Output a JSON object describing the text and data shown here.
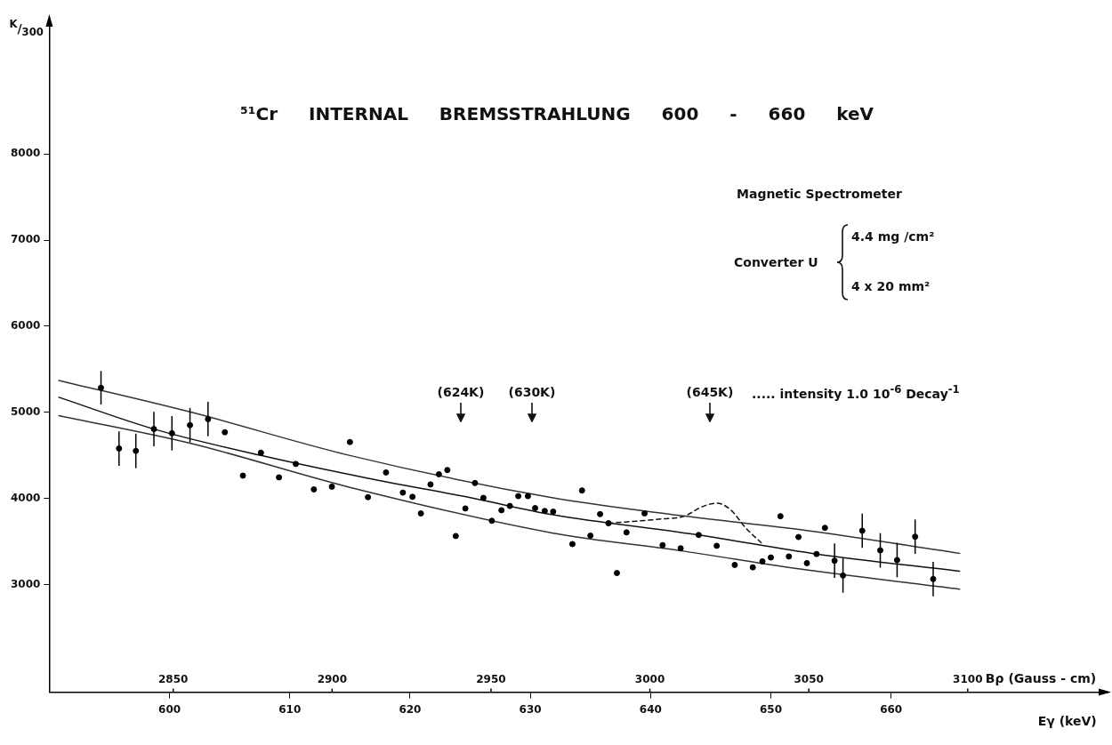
{
  "chart_data": {
    "type": "scatter",
    "title": "⁵¹Cr INTERNAL BREMSSTRAHLUNG 600 - 660 keV",
    "xlabel": "Eγ (keV)",
    "x2label": "Bρ (Gauss - cm)",
    "ylabel": "$^{K}$/$_{300}$",
    "xlim": [
      590,
      678
    ],
    "xticks": [
      600,
      610,
      620,
      630,
      640,
      650,
      660
    ],
    "x2lim": [
      2811,
      3144
    ],
    "x2ticks": [
      2850,
      2900,
      2950,
      3000,
      3050,
      3100
    ],
    "ylim": [
      1750,
      9500
    ],
    "yticks": [
      3000,
      4000,
      5000,
      6000,
      7000,
      8000
    ],
    "grid": false,
    "marker": "circle",
    "series": [
      {
        "color": "#000000",
        "x": [
          594.3,
          595.8,
          597.2,
          598.7,
          600.2,
          601.7,
          603.2,
          604.6,
          606.1,
          607.6,
          609.1,
          610.5,
          612.0,
          613.5,
          615.0,
          616.5,
          618.0,
          619.4,
          620.2,
          620.9,
          621.7,
          622.4,
          623.1,
          623.8,
          624.6,
          625.4,
          626.1,
          626.8,
          627.6,
          628.3,
          629.0,
          629.8,
          630.4,
          631.2,
          631.9,
          633.5,
          634.3,
          635.0,
          635.8,
          636.5,
          637.2,
          638.0,
          639.5,
          641.0,
          642.5,
          644.0,
          645.5,
          647.0,
          648.5,
          649.3,
          650.0,
          650.8,
          651.5,
          652.3,
          653.0,
          653.8,
          654.5,
          655.3,
          656.0,
          657.6,
          659.1,
          660.5,
          662.0,
          663.5
        ],
        "values": [
          5285,
          4580,
          4552,
          4806,
          4757,
          4851,
          4921,
          4769,
          4265,
          4531,
          4245,
          4401,
          4105,
          4137,
          4655,
          4015,
          4302,
          4068,
          4019,
          3826,
          4163,
          4281,
          4330,
          3564,
          3884,
          4179,
          4007,
          3741,
          3863,
          3913,
          4027,
          4027,
          3888,
          3855,
          3847,
          3470,
          4093,
          3568,
          3818,
          3712,
          3134,
          3606,
          3826,
          3458,
          3421,
          3576,
          3450,
          3228,
          3200,
          3269,
          3314,
          3794,
          3326,
          3552,
          3249,
          3355,
          3659,
          3277,
          3105,
          3625,
          3397,
          3285,
          3556,
          3064
        ],
        "errors": [
          195,
          200,
          200,
          200,
          200,
          200,
          200,
          null,
          null,
          null,
          null,
          null,
          null,
          null,
          null,
          null,
          null,
          null,
          null,
          null,
          null,
          null,
          null,
          null,
          null,
          null,
          null,
          null,
          null,
          null,
          null,
          null,
          null,
          null,
          null,
          null,
          null,
          null,
          null,
          null,
          null,
          null,
          null,
          null,
          null,
          null,
          null,
          null,
          null,
          null,
          null,
          null,
          null,
          null,
          null,
          null,
          null,
          200,
          200,
          200,
          200,
          200,
          200,
          200
        ]
      },
      {
        "type": "line",
        "marker": "none",
        "color": "#111111",
        "x": [
          590.8,
          598.7,
          607.6,
          616.5,
          625.1,
          631.9,
          644.0,
          653.8,
          665.7
        ],
        "values": [
          5175,
          4806,
          4499,
          4234,
          4007,
          3810,
          3576,
          3355,
          3155
        ]
      },
      {
        "type": "line",
        "marker": "none",
        "color": "#333333",
        "x": [
          590.8,
          601.7,
          615.0,
          631.9,
          642.4,
          653.1,
          665.7
        ],
        "values": [
          5371,
          5005,
          4499,
          4007,
          3803,
          3625,
          3363
        ]
      },
      {
        "type": "line",
        "marker": "none",
        "color": "#333333",
        "x": [
          590.8,
          601.7,
          615.0,
          631.9,
          642.4,
          653.1,
          665.7
        ],
        "values": [
          4962,
          4642,
          4129,
          3597,
          3394,
          3167,
          2946
        ]
      },
      {
        "type": "line",
        "marker": "none",
        "line_style": "dashed",
        "color": "#111111",
        "x": [
          636.5,
          640.9,
          642.8,
          644.3,
          645.5,
          646.7,
          647.9,
          649.2
        ],
        "values": [
          3712,
          3762,
          3795,
          3905,
          3946,
          3863,
          3659,
          3486
        ]
      }
    ],
    "annotations": [
      "(624K)",
      "(630K)",
      "(645K)",
      "..... intensity 1.0 10$^{-6}$ Decay$^{-1}$",
      "Magnetic Spectrometer",
      "Converter U",
      "4.4 mg /cm²",
      "4 x 20 mm²"
    ]
  }
}
